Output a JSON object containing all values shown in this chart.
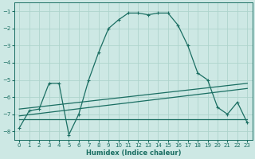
{
  "xlabel": "Humidex (Indice chaleur)",
  "bg_color": "#cde8e4",
  "line_color": "#1a6e62",
  "grid_color": "#aed4cd",
  "xlim": [
    -0.5,
    23.5
  ],
  "ylim": [
    -8.5,
    -0.5
  ],
  "yticks": [
    -8,
    -7,
    -6,
    -5,
    -4,
    -3,
    -2,
    -1
  ],
  "xticks": [
    0,
    1,
    2,
    3,
    4,
    5,
    6,
    7,
    8,
    9,
    10,
    11,
    12,
    13,
    14,
    15,
    16,
    17,
    18,
    19,
    20,
    21,
    22,
    23
  ],
  "curve1_x": [
    0,
    1,
    2,
    3,
    4,
    5,
    6,
    7,
    8,
    9,
    10,
    11,
    12,
    13,
    14,
    15,
    16,
    17,
    18,
    19,
    20,
    21,
    22,
    23
  ],
  "curve1_y": [
    -7.8,
    -6.8,
    -6.7,
    -5.2,
    -5.2,
    -8.2,
    -7.0,
    -5.0,
    -3.4,
    -2.0,
    -1.5,
    -1.1,
    -1.1,
    -1.2,
    -1.1,
    -1.1,
    -1.8,
    -3.0,
    -4.6,
    -5.0,
    -6.6,
    -7.0,
    -6.3,
    -7.5
  ],
  "curve2_x": [
    0,
    23
  ],
  "curve2_y": [
    -6.7,
    -5.2
  ],
  "curve3_x": [
    0,
    23
  ],
  "curve3_y": [
    -7.1,
    -5.5
  ],
  "curve4_x": [
    0,
    23
  ],
  "curve4_y": [
    -7.3,
    -7.3
  ]
}
